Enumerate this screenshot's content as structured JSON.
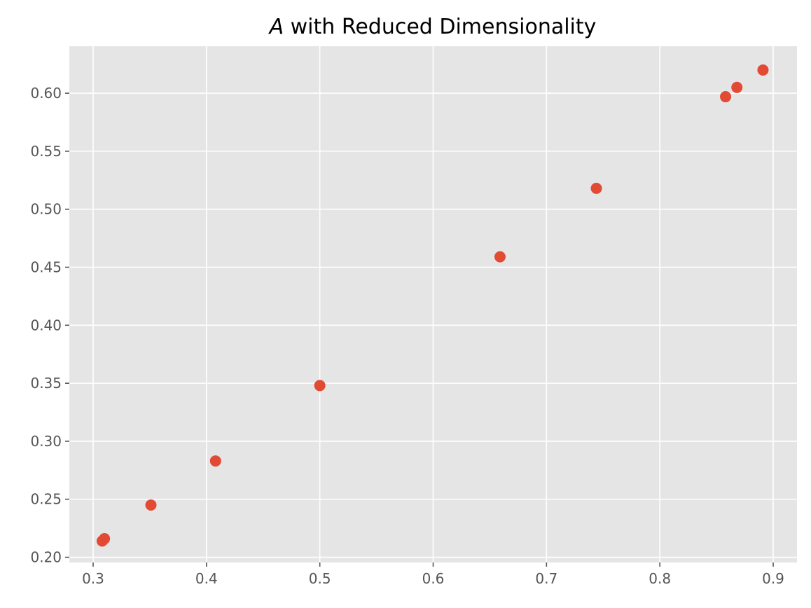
{
  "chart_data": {
    "type": "scatter",
    "title_prefix": "A",
    "title_rest": " with Reduced Dimensionality",
    "xlabel": "",
    "ylabel": "",
    "xlim": [
      0.279,
      0.921
    ],
    "ylim": [
      0.1955,
      0.6405
    ],
    "xticks": [
      "0.3",
      "0.4",
      "0.5",
      "0.6",
      "0.7",
      "0.8",
      "0.9"
    ],
    "yticks": [
      "0.20",
      "0.25",
      "0.30",
      "0.35",
      "0.40",
      "0.45",
      "0.50",
      "0.55",
      "0.60"
    ],
    "grid": true,
    "background": "#e5e5e5",
    "point_color": "#e24a33",
    "points": [
      {
        "x": 0.308,
        "y": 0.214
      },
      {
        "x": 0.31,
        "y": 0.216
      },
      {
        "x": 0.351,
        "y": 0.245
      },
      {
        "x": 0.408,
        "y": 0.283
      },
      {
        "x": 0.5,
        "y": 0.348
      },
      {
        "x": 0.659,
        "y": 0.459
      },
      {
        "x": 0.744,
        "y": 0.518
      },
      {
        "x": 0.858,
        "y": 0.597
      },
      {
        "x": 0.868,
        "y": 0.605
      },
      {
        "x": 0.891,
        "y": 0.62
      }
    ]
  }
}
